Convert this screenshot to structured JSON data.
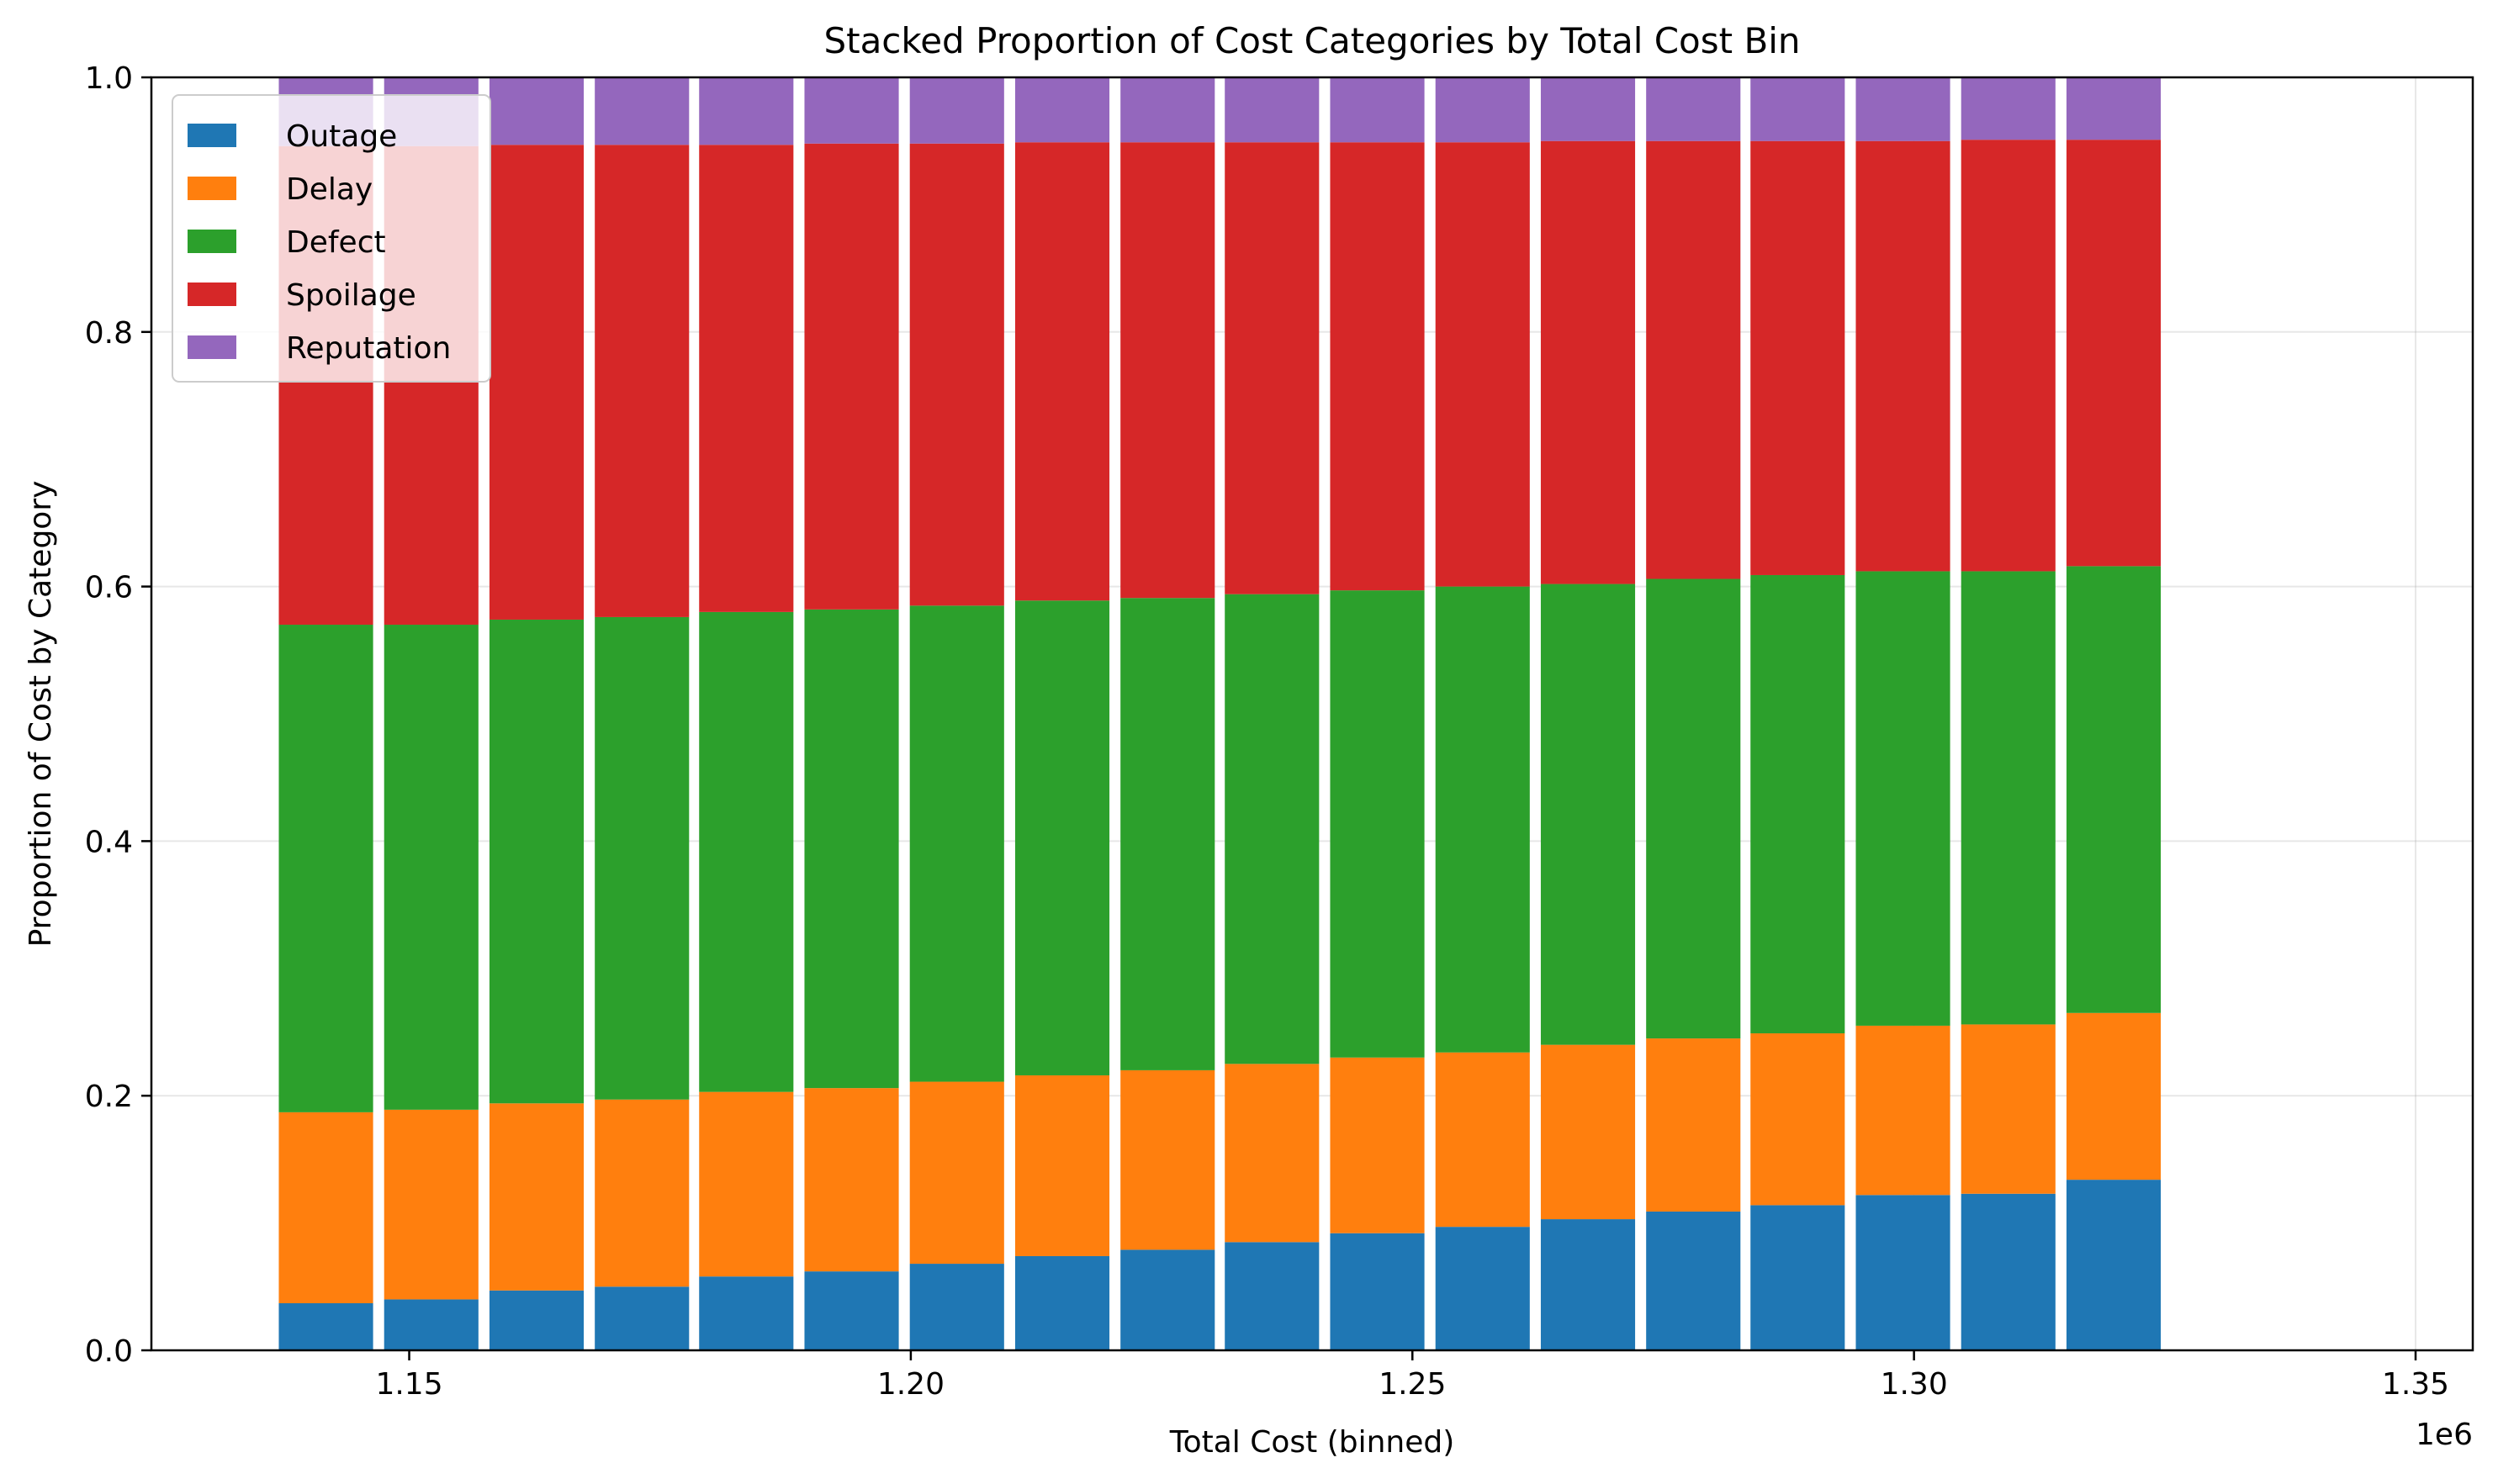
{
  "chart_data": {
    "type": "bar",
    "stacked": true,
    "title": "Stacked Proportion of Cost Categories by Total Cost Bin",
    "xlabel": "Total Cost (binned)",
    "ylabel": "Proportion of Cost by Category",
    "x_offset_label": "1e6",
    "xlim": [
      1.1243,
      1.3557
    ],
    "ylim": [
      0,
      1
    ],
    "x_ticks": [
      1.15,
      1.2,
      1.25,
      1.3,
      1.35
    ],
    "x_tick_labels": [
      "1.15",
      "1.20",
      "1.25",
      "1.30",
      "1.35"
    ],
    "y_ticks": [
      0,
      0.2,
      0.4,
      0.6,
      0.8,
      1.0
    ],
    "y_tick_labels": [
      "0.0",
      "0.2",
      "0.4",
      "0.6",
      "0.8",
      "1.0"
    ],
    "grid": true,
    "legend_position": "upper-left",
    "bar_width": 0.0094,
    "x": [
      1.1417,
      1.1522,
      1.1627,
      1.1732,
      1.1836,
      1.1941,
      1.2046,
      1.2151,
      1.2256,
      1.236,
      1.2465,
      1.257,
      1.2675,
      1.278,
      1.2884,
      1.2989,
      1.3094,
      1.3199
    ],
    "series": [
      {
        "name": "Outage",
        "color": "#1f77b4",
        "values": [
          0.037,
          0.04,
          0.047,
          0.05,
          0.058,
          0.062,
          0.068,
          0.074,
          0.079,
          0.085,
          0.092,
          0.097,
          0.103,
          0.109,
          0.114,
          0.122,
          0.123,
          0.134
        ]
      },
      {
        "name": "Delay",
        "color": "#ff7f0e",
        "values": [
          0.15,
          0.149,
          0.147,
          0.147,
          0.145,
          0.144,
          0.143,
          0.142,
          0.141,
          0.14,
          0.138,
          0.137,
          0.137,
          0.136,
          0.135,
          0.133,
          0.133,
          0.131
        ]
      },
      {
        "name": "Defect",
        "color": "#2ca02c",
        "values": [
          0.383,
          0.381,
          0.38,
          0.379,
          0.377,
          0.376,
          0.374,
          0.373,
          0.371,
          0.369,
          0.367,
          0.366,
          0.362,
          0.361,
          0.36,
          0.357,
          0.356,
          0.351
        ]
      },
      {
        "name": "Spoilage",
        "color": "#d62728",
        "values": [
          0.376,
          0.376,
          0.373,
          0.371,
          0.367,
          0.366,
          0.363,
          0.36,
          0.358,
          0.355,
          0.352,
          0.349,
          0.348,
          0.344,
          0.341,
          0.338,
          0.339,
          0.335
        ]
      },
      {
        "name": "Reputation",
        "color": "#9467bd",
        "values": [
          0.054,
          0.054,
          0.053,
          0.053,
          0.053,
          0.052,
          0.052,
          0.051,
          0.051,
          0.051,
          0.051,
          0.051,
          0.05,
          0.05,
          0.05,
          0.05,
          0.049,
          0.049
        ]
      }
    ]
  }
}
